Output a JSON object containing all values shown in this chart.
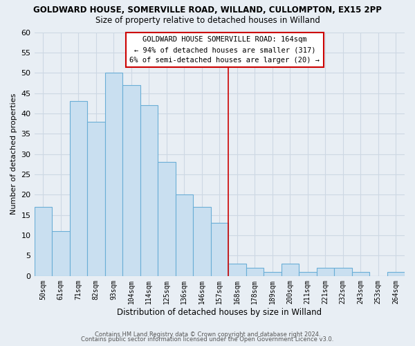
{
  "title": "GOLDWARD HOUSE, SOMERVILLE ROAD, WILLAND, CULLOMPTON, EX15 2PP",
  "subtitle": "Size of property relative to detached houses in Willand",
  "xlabel": "Distribution of detached houses by size in Willand",
  "ylabel": "Number of detached properties",
  "bar_labels": [
    "50sqm",
    "61sqm",
    "71sqm",
    "82sqm",
    "93sqm",
    "104sqm",
    "114sqm",
    "125sqm",
    "136sqm",
    "146sqm",
    "157sqm",
    "168sqm",
    "178sqm",
    "189sqm",
    "200sqm",
    "211sqm",
    "221sqm",
    "232sqm",
    "243sqm",
    "253sqm",
    "264sqm"
  ],
  "bar_values": [
    17,
    11,
    43,
    38,
    50,
    47,
    42,
    28,
    20,
    17,
    13,
    3,
    2,
    1,
    3,
    1,
    2,
    2,
    1,
    0,
    1
  ],
  "bar_color": "#c9dff0",
  "bar_edge_color": "#6aaed6",
  "ylim": [
    0,
    60
  ],
  "yticks": [
    0,
    5,
    10,
    15,
    20,
    25,
    30,
    35,
    40,
    45,
    50,
    55,
    60
  ],
  "vline_index": 11,
  "vline_color": "#cc0000",
  "annotation_title": "GOLDWARD HOUSE SOMERVILLE ROAD: 164sqm",
  "annotation_line1": "← 94% of detached houses are smaller (317)",
  "annotation_line2": "6% of semi-detached houses are larger (20) →",
  "footer1": "Contains HM Land Registry data © Crown copyright and database right 2024.",
  "footer2": "Contains public sector information licensed under the Open Government Licence v3.0.",
  "bg_color": "#e8eef4",
  "grid_color": "#cdd8e3",
  "ann_box_color": "white",
  "ann_border_color": "#cc0000"
}
